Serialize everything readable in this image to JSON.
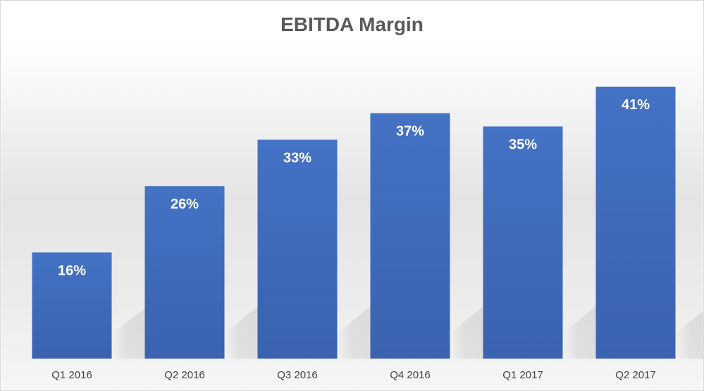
{
  "chart_data": {
    "type": "bar",
    "title": "EBITDA Margin",
    "categories": [
      "Q1 2016",
      "Q2 2016",
      "Q3 2016",
      "Q4 2016",
      "Q1 2017",
      "Q2 2017"
    ],
    "values": [
      16,
      26,
      33,
      37,
      35,
      41
    ],
    "value_labels": [
      "16%",
      "26%",
      "33%",
      "37%",
      "35%",
      "41%"
    ],
    "unit": "%",
    "ylim": [
      0,
      41
    ],
    "grid": false,
    "legend": "none",
    "colors": {
      "bar_top": "#4472C4",
      "bar_bottom": "#3A62B0",
      "title": "#595959",
      "tick_text": "#404040",
      "bar_label_text": "#FFFFFF"
    }
  }
}
